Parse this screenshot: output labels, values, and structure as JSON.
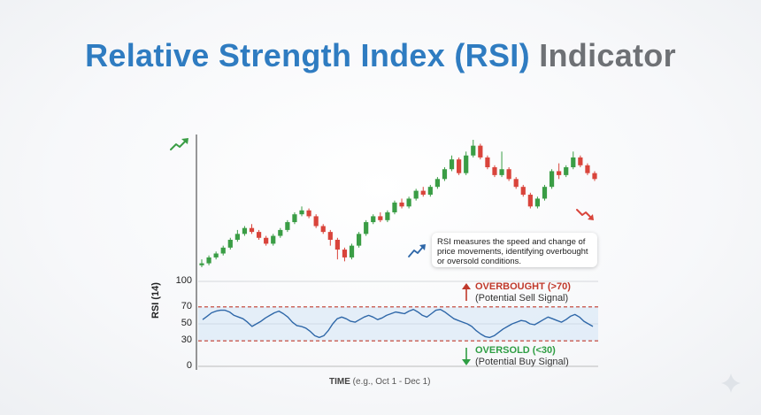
{
  "title_main": "Relative Strength Index (RSI)",
  "title_accent": "Indicator",
  "callout_text": "RSI measures the speed and change of price movements, identifying overbought or oversold conditions.",
  "overbought": {
    "label": "OVERBOUGHT (>70)",
    "sub": "(Potential Sell Signal)",
    "color": "#c0392b"
  },
  "oversold": {
    "label": "OVERSOLD (<30)",
    "sub": "(Potential Buy Signal)",
    "color": "#2f9e44"
  },
  "x_label_bold": "TIME",
  "x_label_rest": "(e.g., Oct 1 - Dec 1)",
  "colors": {
    "up": "#3a9d45",
    "down": "#d9443b",
    "rsi_line": "#2e67a8",
    "band": "#dceaf7",
    "threshold": "#c0392b"
  },
  "chart_data": [
    {
      "type": "candlestick",
      "title": "",
      "series": [
        {
          "candles": [
            [
              8,
              9,
              11,
              7
            ],
            [
              9,
              12,
              13,
              8
            ],
            [
              12,
              14,
              15,
              11
            ],
            [
              14,
              17,
              18,
              13
            ],
            [
              17,
              21,
              22,
              16
            ],
            [
              21,
              24,
              26,
              20
            ],
            [
              24,
              27,
              28,
              23
            ],
            [
              27,
              25,
              29,
              24
            ],
            [
              25,
              22,
              26,
              21
            ],
            [
              22,
              19,
              23,
              18
            ],
            [
              19,
              23,
              24,
              18
            ],
            [
              23,
              26,
              27,
              22
            ],
            [
              26,
              30,
              31,
              25
            ],
            [
              30,
              34,
              35,
              29
            ],
            [
              34,
              36,
              38,
              33
            ],
            [
              36,
              33,
              37,
              32
            ],
            [
              33,
              28,
              34,
              27
            ],
            [
              28,
              25,
              29,
              24
            ],
            [
              25,
              21,
              26,
              18
            ],
            [
              21,
              16,
              22,
              11
            ],
            [
              16,
              12,
              17,
              10
            ],
            [
              12,
              18,
              19,
              11
            ],
            [
              18,
              24,
              25,
              17
            ],
            [
              24,
              30,
              31,
              23
            ],
            [
              30,
              33,
              34,
              29
            ],
            [
              33,
              31,
              35,
              30
            ],
            [
              31,
              35,
              36,
              30
            ],
            [
              35,
              40,
              41,
              34
            ],
            [
              40,
              38,
              42,
              37
            ],
            [
              38,
              42,
              43,
              37
            ],
            [
              42,
              46,
              47,
              41
            ],
            [
              46,
              44,
              48,
              43
            ],
            [
              44,
              48,
              49,
              43
            ],
            [
              48,
              52,
              53,
              47
            ],
            [
              52,
              57,
              58,
              51
            ],
            [
              57,
              62,
              64,
              56
            ],
            [
              62,
              55,
              63,
              54
            ],
            [
              55,
              64,
              66,
              54
            ],
            [
              64,
              69,
              72,
              63
            ],
            [
              69,
              63,
              70,
              62
            ],
            [
              63,
              58,
              64,
              57
            ],
            [
              58,
              54,
              59,
              53
            ],
            [
              54,
              57,
              66,
              53
            ],
            [
              57,
              52,
              58,
              51
            ],
            [
              52,
              48,
              53,
              47
            ],
            [
              48,
              44,
              49,
              43
            ],
            [
              44,
              38,
              45,
              37
            ],
            [
              38,
              42,
              43,
              37
            ],
            [
              42,
              48,
              49,
              41
            ],
            [
              48,
              56,
              57,
              47
            ],
            [
              56,
              54,
              60,
              52
            ],
            [
              54,
              58,
              59,
              53
            ],
            [
              58,
              63,
              66,
              57
            ],
            [
              63,
              59,
              64,
              58
            ],
            [
              59,
              55,
              60,
              54
            ],
            [
              55,
              52,
              56,
              51
            ]
          ]
        }
      ]
    },
    {
      "type": "line",
      "title": "",
      "ylabel": "RSI (14)",
      "xlabel": "TIME (e.g., Oct 1 - Dec 1)",
      "ylim": [
        0,
        100
      ],
      "yticks": [
        0,
        30,
        50,
        70,
        100
      ],
      "thresholds": [
        70,
        30
      ],
      "series": [
        {
          "values": [
            55,
            59,
            63,
            65,
            66,
            66,
            64,
            60,
            58,
            56,
            52,
            47,
            50,
            53,
            57,
            60,
            63,
            65,
            62,
            58,
            52,
            48,
            47,
            45,
            41,
            36,
            34,
            36,
            42,
            50,
            56,
            58,
            56,
            53,
            52,
            55,
            58,
            60,
            58,
            55,
            57,
            60,
            62,
            64,
            63,
            62,
            65,
            67,
            64,
            60,
            58,
            62,
            66,
            67,
            64,
            60,
            56,
            54,
            52,
            50,
            47,
            42,
            38,
            35,
            34,
            36,
            40,
            44,
            47,
            50,
            52,
            54,
            53,
            50,
            49,
            52,
            55,
            58,
            56,
            54,
            52,
            55,
            59,
            61,
            58,
            53,
            50,
            47
          ]
        }
      ]
    }
  ]
}
